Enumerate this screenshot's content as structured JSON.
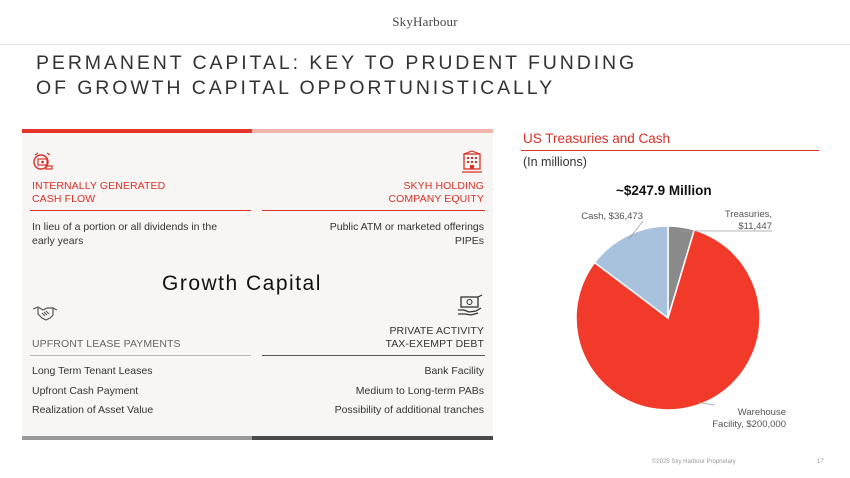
{
  "brand": {
    "logo_text": "SkyHarbour"
  },
  "title": {
    "line1": "PERMANENT CAPITAL: KEY TO PRUDENT FUNDING",
    "line2": "OF GROWTH CAPITAL OPPORTUNISTICALLY"
  },
  "left_panel": {
    "center_label": "Growth Capital",
    "top_left": {
      "icon": "money-flow-icon",
      "header_line1": "INTERNALLY GENERATED",
      "header_line2": "CASH FLOW",
      "text_line1": "In lieu of a portion or all dividends in the",
      "text_line2": "early years"
    },
    "top_right": {
      "icon": "building-icon",
      "header_line1": "SKYH HOLDING",
      "header_line2": "COMPANY EQUITY",
      "text_line1": "Public ATM or marketed offerings",
      "text_line2": "PIPEs"
    },
    "bottom_left": {
      "icon": "handshake-icon",
      "header": "UPFRONT LEASE PAYMENTS",
      "items": [
        "Long Term Tenant Leases",
        "Upfront Cash Payment",
        "Realization of Asset Value"
      ]
    },
    "bottom_right": {
      "icon": "cash-hand-icon",
      "header_line1": "PRIVATE ACTIVITY",
      "header_line2": "TAX-EXEMPT DEBT",
      "items": [
        "Bank Facility",
        "Medium to Long-term PABs",
        "Possibility of additional tranches"
      ]
    },
    "colors": {
      "accent_red": "#e5352a",
      "light_red": "#f2b5ad",
      "grey": "#9a9a9a",
      "dark_grey": "#4a4a4a"
    }
  },
  "chart_panel": {
    "title": "US Treasuries and Cash",
    "unit": "(In millions)",
    "total_label": "~$247.9 Million"
  },
  "chart_data": {
    "type": "pie",
    "slices": [
      {
        "label": "Cash",
        "value": 36473,
        "display": "Cash, $36,473",
        "color": "#a8c1dd"
      },
      {
        "label": "Treasuries",
        "value": 11447,
        "display": "Treasuries, $11,447",
        "color": "#8a8a8a"
      },
      {
        "label": "Warehouse Facility",
        "value": 200000,
        "display": "Warehouse Facility, $200,000",
        "color": "#f23a2a"
      }
    ]
  },
  "footer": {
    "copyright": "©2025 Sky Harbour Proprietary",
    "page": "17"
  }
}
